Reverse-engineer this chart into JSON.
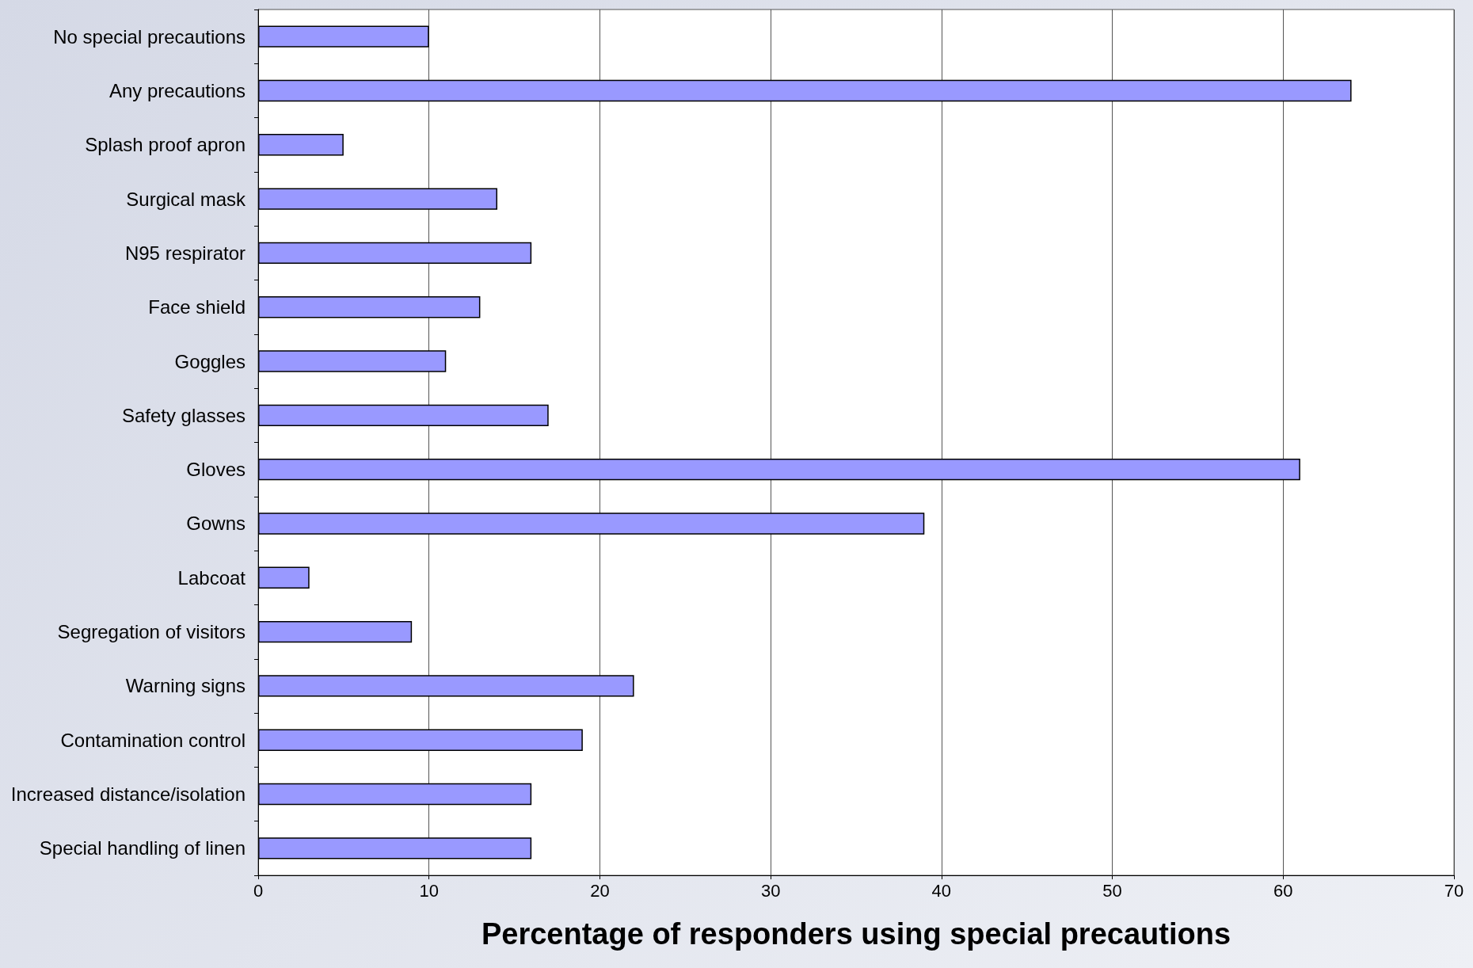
{
  "chart_data": {
    "type": "bar",
    "orientation": "horizontal",
    "xlabel": "Percentage of responders using special precautions",
    "categories": [
      "No special precautions",
      "Any precautions",
      "Splash proof apron",
      "Surgical mask",
      "N95 respirator",
      "Face shield",
      "Goggles",
      "Safety glasses",
      "Gloves",
      "Gowns",
      "Labcoat",
      "Segregation of visitors",
      "Warning signs",
      "Contamination control",
      "Increased distance/isolation",
      "Special handling of linen"
    ],
    "values": [
      10,
      64,
      5,
      14,
      16,
      13,
      11,
      17,
      61,
      39,
      3,
      9,
      22,
      19,
      16,
      16
    ],
    "color": "#9999ff",
    "xlim": [
      0,
      70
    ],
    "xticks": [
      0,
      10,
      20,
      30,
      40,
      50,
      60,
      70
    ],
    "grid": "x"
  }
}
